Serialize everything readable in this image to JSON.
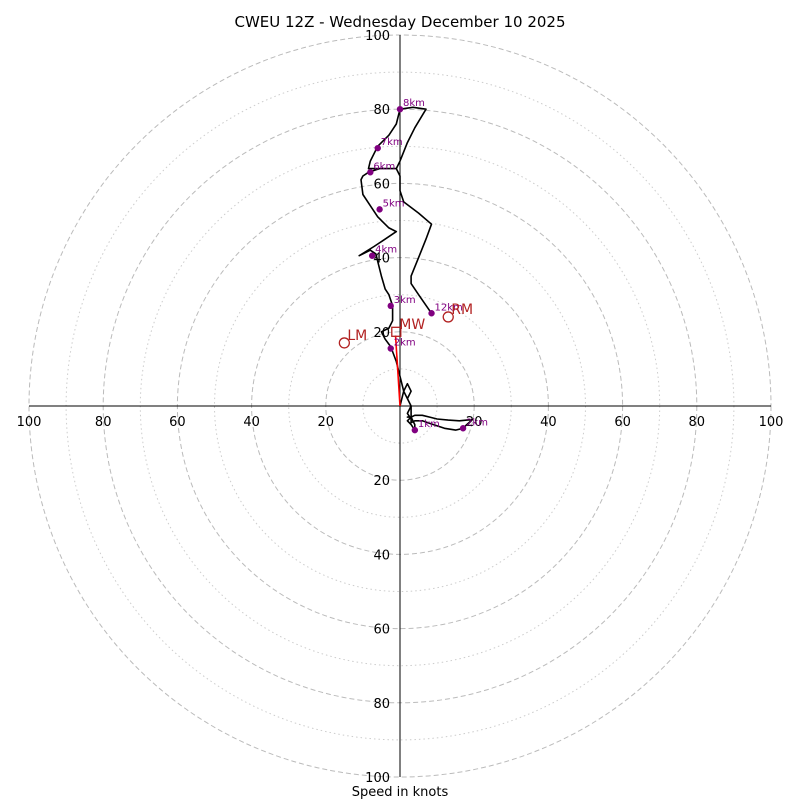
{
  "chart_data": {
    "type": "hodograph",
    "title": "CWEU 12Z - Wednesday December 10 2025",
    "xlabel": "Speed in knots",
    "range": 100,
    "ring_major": [
      20,
      40,
      60,
      80,
      100
    ],
    "ring_minor": [
      10,
      30,
      50,
      70,
      90
    ],
    "x_tick_labels": [
      "100",
      "80",
      "60",
      "40",
      "20",
      "20",
      "40",
      "60",
      "80",
      "100"
    ],
    "x_tick_values": [
      -100,
      -80,
      -60,
      -40,
      -20,
      20,
      40,
      60,
      80,
      100
    ],
    "y_tick_labels": [
      "100",
      "80",
      "60",
      "40",
      "20",
      "20",
      "40",
      "60",
      "80",
      "100"
    ],
    "y_tick_values": [
      100,
      80,
      60,
      40,
      20,
      -20,
      -40,
      -60,
      -80,
      -100
    ],
    "profile": {
      "color": "#000000",
      "points": [
        [
          0,
          0
        ],
        [
          1,
          4
        ],
        [
          2,
          6
        ],
        [
          3,
          4
        ],
        [
          2,
          2
        ],
        [
          3,
          0
        ],
        [
          3,
          -1
        ],
        [
          3,
          -2
        ],
        [
          3,
          -3
        ],
        [
          2,
          -3
        ],
        [
          3,
          -3
        ],
        [
          2,
          -4
        ],
        [
          3,
          -5
        ],
        [
          4,
          -6.5
        ],
        [
          4,
          -5
        ],
        [
          3,
          -3
        ],
        [
          4,
          -2.5
        ],
        [
          6,
          -2.5
        ],
        [
          8,
          -3
        ],
        [
          10,
          -3.5
        ],
        [
          13,
          -3.8
        ],
        [
          16,
          -4
        ],
        [
          18,
          -3.8
        ],
        [
          19.5,
          -3.7
        ],
        [
          18,
          -5
        ],
        [
          17,
          -6
        ],
        [
          15,
          -6.5
        ],
        [
          12,
          -6
        ],
        [
          9,
          -5
        ],
        [
          6,
          -4
        ],
        [
          4,
          -4
        ],
        [
          3,
          -4.5
        ],
        [
          3,
          -3.5
        ],
        [
          2,
          -2
        ],
        [
          3,
          0
        ],
        [
          2,
          2
        ],
        [
          1,
          4
        ],
        [
          0,
          8
        ],
        [
          -1,
          12
        ],
        [
          -2.5,
          16
        ],
        [
          -4,
          18
        ],
        [
          -5,
          20
        ],
        [
          -3,
          21
        ],
        [
          -2,
          23
        ],
        [
          -2,
          27
        ],
        [
          -3,
          30
        ],
        [
          -4,
          31.5
        ],
        [
          -5,
          35
        ],
        [
          -6,
          39
        ],
        [
          -6.5,
          41
        ],
        [
          -8,
          42
        ],
        [
          -11,
          40.5
        ],
        [
          -7,
          43
        ],
        [
          -4,
          45
        ],
        [
          -1,
          47
        ],
        [
          -3,
          48
        ],
        [
          -6,
          51
        ],
        [
          -8,
          54
        ],
        [
          -10,
          57
        ],
        [
          -10.5,
          61
        ],
        [
          -10,
          62
        ],
        [
          -8.5,
          63
        ],
        [
          -5.5,
          64
        ],
        [
          -1,
          64
        ],
        [
          0,
          66
        ],
        [
          2,
          71
        ],
        [
          4,
          75
        ],
        [
          7,
          80
        ],
        [
          3.5,
          80.5
        ],
        [
          0,
          80
        ],
        [
          -1,
          76
        ],
        [
          -3,
          73
        ],
        [
          -6,
          70
        ],
        [
          -8,
          66
        ],
        [
          -8.5,
          64
        ],
        [
          -5.5,
          64
        ],
        [
          -1,
          64
        ],
        [
          0,
          62
        ],
        [
          0,
          58
        ],
        [
          1,
          55
        ],
        [
          5,
          52
        ],
        [
          8.5,
          49
        ],
        [
          7,
          45
        ],
        [
          5,
          40
        ],
        [
          3,
          35
        ],
        [
          3,
          33
        ],
        [
          5,
          30
        ],
        [
          8.5,
          25
        ]
      ]
    },
    "height_markers": [
      {
        "label": "1km",
        "u": 4,
        "v": -6.5
      },
      {
        "label": "2km",
        "u": -2.5,
        "v": 15.5
      },
      {
        "label": "3km",
        "u": -2.5,
        "v": 27
      },
      {
        "label": "4km",
        "u": -7.5,
        "v": 40.5
      },
      {
        "label": "5km",
        "u": -5.5,
        "v": 53
      },
      {
        "label": "6km",
        "u": -8,
        "v": 63
      },
      {
        "label": "7km",
        "u": -6,
        "v": 69.5
      },
      {
        "label": "8km",
        "u": 0,
        "v": 80
      },
      {
        "label": "12km",
        "u": 8.5,
        "v": 25
      },
      {
        "label": "2km",
        "u": 17,
        "v": -6
      }
    ],
    "marker_color": "#800080",
    "shear_vector": {
      "color": "#ff0000",
      "from": [
        0,
        0
      ],
      "to": [
        -1.2,
        19
      ]
    },
    "motion_markers": [
      {
        "label": "LM",
        "u": -15,
        "v": 17,
        "shape": "circle"
      },
      {
        "label": "RM",
        "u": 13,
        "v": 24,
        "shape": "circle"
      },
      {
        "label": "MW",
        "u": -1,
        "v": 20,
        "shape": "square"
      }
    ],
    "motion_color": "#b22222",
    "grid": true
  }
}
